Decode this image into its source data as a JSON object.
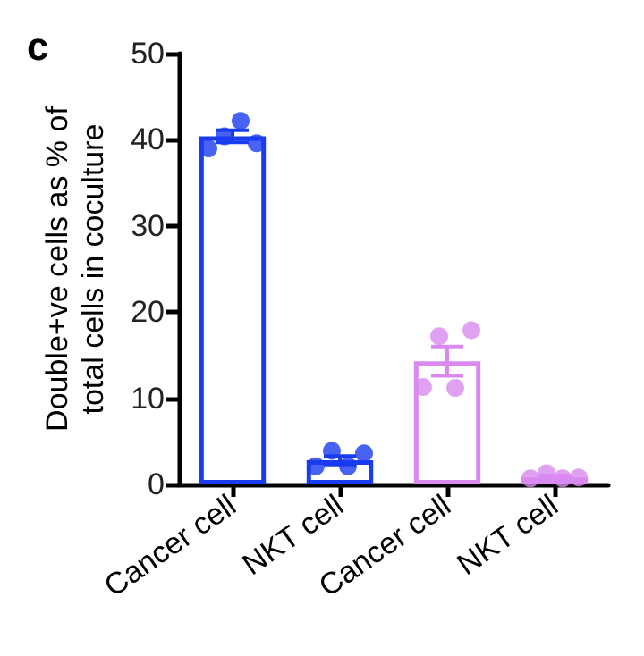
{
  "chart_data": {
    "type": "bar",
    "title": "c",
    "ylabel": "Double+ve cells as % of\ntotal cells in coculture",
    "categories": [
      "Cancer cell",
      "NKT cell",
      "Cancer cell",
      "NKT cell"
    ],
    "ylim": [
      0,
      50
    ],
    "yticks": [
      0,
      10,
      20,
      30,
      40,
      50
    ],
    "grid": false,
    "marker": "circle",
    "series": [
      {
        "values": [
          40.4,
          2.8,
          14.3,
          0.8
        ],
        "errors": [
          0.7,
          0.5,
          1.7,
          0.2
        ],
        "colors": [
          "#1a3cf0",
          "#1a3cf0",
          "#d98af0",
          "#d98af0"
        ]
      },
      {
        "type": "scatter",
        "values": [
          39.0,
          2.1,
          11.3,
          0.7
        ],
        "colors": [
          "#1a3cf0",
          "#1a3cf0",
          "#d98af0",
          "#d98af0"
        ]
      },
      {
        "type": "scatter",
        "values": [
          40.4,
          3.9,
          17.2,
          1.3
        ],
        "colors": [
          "#1a3cf0",
          "#1a3cf0",
          "#d98af0",
          "#d98af0"
        ]
      },
      {
        "type": "scatter",
        "values": [
          42.2,
          2.1,
          11.2,
          0.7
        ],
        "colors": [
          "#1a3cf0",
          "#1a3cf0",
          "#d98af0",
          "#d98af0"
        ]
      },
      {
        "type": "scatter",
        "values": [
          39.6,
          3.6,
          17.9,
          0.8
        ],
        "colors": [
          "#1a3cf0",
          "#1a3cf0",
          "#d98af0",
          "#d98af0"
        ]
      }
    ]
  }
}
